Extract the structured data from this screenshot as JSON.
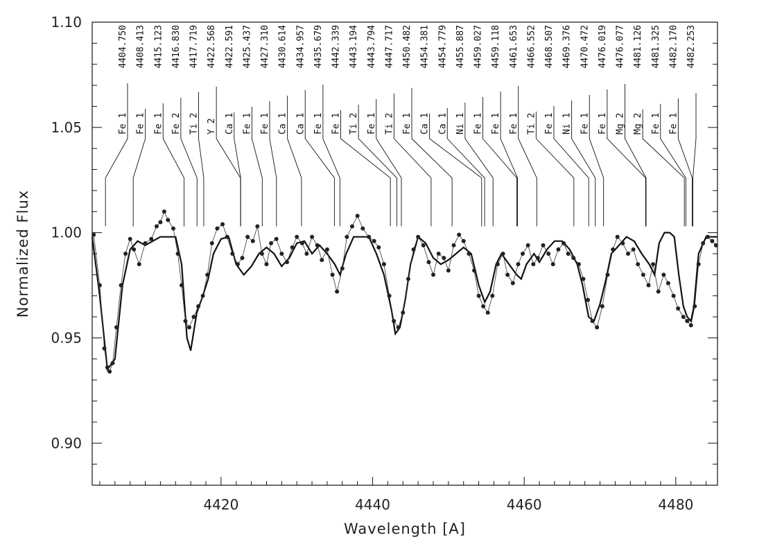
{
  "chart_data": {
    "type": "line",
    "xlabel": "Wavelength [A]",
    "ylabel": "Normalized Flux",
    "xlim": [
      4403,
      4485.5
    ],
    "ylim": [
      0.88,
      1.1
    ],
    "x_ticks": [
      4420,
      4440,
      4460,
      4480
    ],
    "x_tick_labels": [
      "4420",
      "4440",
      "4460",
      "4480"
    ],
    "y_ticks": [
      0.9,
      0.95,
      1.0,
      1.05,
      1.1
    ],
    "y_tick_labels": [
      "0.90",
      "0.95",
      "1.00",
      "1.05",
      "1.10"
    ],
    "grid": false,
    "lines": [
      {
        "wavelength": 4404.75,
        "element": "Fe 1"
      },
      {
        "wavelength": 4408.413,
        "element": "Fe 1"
      },
      {
        "wavelength": 4415.123,
        "element": "Fe 1"
      },
      {
        "wavelength": 4416.83,
        "element": "Fe 2"
      },
      {
        "wavelength": 4417.719,
        "element": "Ti 2"
      },
      {
        "wavelength": 4422.568,
        "element": "Y 2"
      },
      {
        "wavelength": 4422.591,
        "element": "Ca 1"
      },
      {
        "wavelength": 4425.437,
        "element": "Fe 1"
      },
      {
        "wavelength": 4427.31,
        "element": "Fe 1"
      },
      {
        "wavelength": 4430.614,
        "element": "Ca 1"
      },
      {
        "wavelength": 4434.957,
        "element": "Ca 1"
      },
      {
        "wavelength": 4435.679,
        "element": "Fe 1"
      },
      {
        "wavelength": 4442.339,
        "element": "Fe 1"
      },
      {
        "wavelength": 4443.194,
        "element": "Ti 2"
      },
      {
        "wavelength": 4443.794,
        "element": "Fe 1"
      },
      {
        "wavelength": 4447.717,
        "element": "Ti 2"
      },
      {
        "wavelength": 4450.482,
        "element": "Fe 1"
      },
      {
        "wavelength": 4454.381,
        "element": "Ca 1"
      },
      {
        "wavelength": 4454.779,
        "element": "Ca 1"
      },
      {
        "wavelength": 4455.887,
        "element": "Ni 1"
      },
      {
        "wavelength": 4459.027,
        "element": "Fe 1"
      },
      {
        "wavelength": 4459.118,
        "element": "Fe 1"
      },
      {
        "wavelength": 4461.653,
        "element": "Fe 1"
      },
      {
        "wavelength": 4466.552,
        "element": "Ti 2"
      },
      {
        "wavelength": 4468.507,
        "element": "Fe 1"
      },
      {
        "wavelength": 4469.376,
        "element": "Ni 1"
      },
      {
        "wavelength": 4470.472,
        "element": "Fe 1"
      },
      {
        "wavelength": 4476.019,
        "element": "Fe 1"
      },
      {
        "wavelength": 4476.077,
        "element": "Mg 2"
      },
      {
        "wavelength": 4481.126,
        "element": "Mg 2"
      },
      {
        "wavelength": 4481.325,
        "element": "Fe 1"
      },
      {
        "wavelength": 4482.17,
        "element": "Fe 1"
      },
      {
        "wavelength": 4482.253,
        "element": ""
      }
    ],
    "series": [
      {
        "style": "solid-line",
        "x": [
          4403.0,
          4404.0,
          4405.0,
          4406.0,
          4407.0,
          4408.0,
          4409.0,
          4410.0,
          4412.0,
          4414.0,
          4414.8,
          4415.5,
          4416.0,
          4416.8,
          4417.6,
          4418.3,
          4419.0,
          4420.0,
          4421.0,
          4422.0,
          4423.0,
          4424.0,
          4425.0,
          4426.0,
          4427.0,
          4428.0,
          4429.0,
          4430.0,
          4431.0,
          4432.0,
          4433.0,
          4434.0,
          4435.0,
          4435.7,
          4436.5,
          4437.5,
          4439.5,
          4440.5,
          4441.5,
          4442.5,
          4443.0,
          4443.6,
          4444.3,
          4445.0,
          4446.0,
          4447.0,
          4448.0,
          4449.0,
          4450.0,
          4451.0,
          4452.0,
          4453.0,
          4454.0,
          4454.8,
          4455.5,
          4456.3,
          4457.0,
          4458.0,
          4459.0,
          4459.6,
          4460.3,
          4461.3,
          4462.0,
          4463.0,
          4464.0,
          4465.0,
          4466.0,
          4467.0,
          4467.7,
          4468.5,
          4469.2,
          4470.0,
          4470.8,
          4471.5,
          4472.5,
          4473.5,
          4474.5,
          4475.5,
          4476.5,
          4477.2,
          4477.8,
          4478.5,
          4479.2,
          4479.8,
          4480.4,
          4481.0,
          4481.5,
          4482.0,
          4482.4,
          4483.0,
          4484.0,
          4485.5
        ],
        "y": [
          0.998,
          0.97,
          0.935,
          0.94,
          0.975,
          0.992,
          0.996,
          0.994,
          0.998,
          0.998,
          0.985,
          0.95,
          0.944,
          0.962,
          0.97,
          0.978,
          0.99,
          0.997,
          0.998,
          0.985,
          0.98,
          0.984,
          0.99,
          0.993,
          0.99,
          0.984,
          0.988,
          0.995,
          0.996,
          0.99,
          0.994,
          0.99,
          0.985,
          0.98,
          0.99,
          0.998,
          0.998,
          0.99,
          0.98,
          0.963,
          0.952,
          0.955,
          0.968,
          0.985,
          0.998,
          0.995,
          0.988,
          0.985,
          0.987,
          0.99,
          0.993,
          0.99,
          0.975,
          0.967,
          0.972,
          0.985,
          0.99,
          0.985,
          0.98,
          0.978,
          0.985,
          0.99,
          0.986,
          0.992,
          0.996,
          0.996,
          0.992,
          0.985,
          0.975,
          0.96,
          0.958,
          0.966,
          0.978,
          0.99,
          0.994,
          0.998,
          0.996,
          0.99,
          0.985,
          0.98,
          0.995,
          1.0,
          1.0,
          0.998,
          0.98,
          0.965,
          0.96,
          0.958,
          0.965,
          0.99,
          0.998,
          0.998
        ]
      },
      {
        "style": "dotted-points",
        "x": [
          4403.2,
          4404.0,
          4404.6,
          4405.0,
          4405.3,
          4405.7,
          4406.2,
          4406.8,
          4407.4,
          4408.0,
          4408.5,
          4409.2,
          4410.0,
          4410.8,
          4411.5,
          4412.0,
          4412.5,
          4413.0,
          4413.7,
          4414.3,
          4414.8,
          4415.3,
          4415.8,
          4416.4,
          4417.0,
          4417.6,
          4418.2,
          4418.8,
          4419.5,
          4420.2,
          4420.8,
          4421.5,
          4422.2,
          4422.8,
          4423.5,
          4424.2,
          4424.8,
          4425.4,
          4426.0,
          4426.6,
          4427.3,
          4428.0,
          4428.7,
          4429.4,
          4430.0,
          4430.7,
          4431.3,
          4432.0,
          4432.7,
          4433.3,
          4434.0,
          4434.7,
          4435.3,
          4436.0,
          4436.6,
          4437.3,
          4438.0,
          4438.7,
          4439.5,
          4440.2,
          4440.8,
          4441.5,
          4442.2,
          4442.8,
          4443.4,
          4444.0,
          4444.7,
          4445.4,
          4446.0,
          4446.7,
          4447.4,
          4448.0,
          4448.7,
          4449.4,
          4450.0,
          4450.7,
          4451.4,
          4452.0,
          4452.7,
          4453.4,
          4454.0,
          4454.6,
          4455.2,
          4455.8,
          4456.5,
          4457.2,
          4457.8,
          4458.5,
          4459.2,
          4459.8,
          4460.5,
          4461.2,
          4461.8,
          4462.5,
          4463.2,
          4463.8,
          4464.5,
          4465.2,
          4465.8,
          4466.5,
          4467.2,
          4467.8,
          4468.4,
          4469.0,
          4469.6,
          4470.3,
          4471.0,
          4471.7,
          4472.3,
          4473.0,
          4473.7,
          4474.4,
          4475.0,
          4475.7,
          4476.4,
          4477.0,
          4477.7,
          4478.4,
          4479.0,
          4479.7,
          4480.3,
          4481.0,
          4481.5,
          4482.0,
          4482.5,
          4483.0,
          4483.6,
          4484.2,
          4484.8,
          4485.3
        ],
        "y": [
          0.999,
          0.975,
          0.945,
          0.936,
          0.934,
          0.938,
          0.955,
          0.975,
          0.99,
          0.997,
          0.992,
          0.985,
          0.995,
          0.997,
          1.003,
          1.005,
          1.01,
          1.006,
          1.002,
          0.99,
          0.975,
          0.958,
          0.955,
          0.96,
          0.965,
          0.97,
          0.98,
          0.995,
          1.002,
          1.004,
          0.998,
          0.99,
          0.985,
          0.988,
          0.998,
          0.996,
          1.003,
          0.99,
          0.985,
          0.995,
          0.997,
          0.99,
          0.986,
          0.993,
          0.998,
          0.995,
          0.99,
          0.998,
          0.994,
          0.987,
          0.992,
          0.98,
          0.972,
          0.983,
          0.998,
          1.003,
          1.008,
          1.002,
          0.998,
          0.996,
          0.993,
          0.985,
          0.97,
          0.958,
          0.955,
          0.962,
          0.978,
          0.992,
          0.998,
          0.994,
          0.986,
          0.98,
          0.99,
          0.988,
          0.982,
          0.994,
          0.999,
          0.996,
          0.99,
          0.982,
          0.97,
          0.965,
          0.962,
          0.97,
          0.985,
          0.99,
          0.98,
          0.976,
          0.985,
          0.99,
          0.994,
          0.985,
          0.988,
          0.994,
          0.99,
          0.985,
          0.992,
          0.995,
          0.99,
          0.988,
          0.985,
          0.978,
          0.968,
          0.958,
          0.955,
          0.965,
          0.98,
          0.992,
          0.998,
          0.995,
          0.99,
          0.992,
          0.985,
          0.98,
          0.975,
          0.985,
          0.972,
          0.98,
          0.976,
          0.97,
          0.964,
          0.96,
          0.958,
          0.956,
          0.965,
          0.985,
          0.995,
          0.998,
          0.996,
          0.994
        ]
      }
    ]
  }
}
